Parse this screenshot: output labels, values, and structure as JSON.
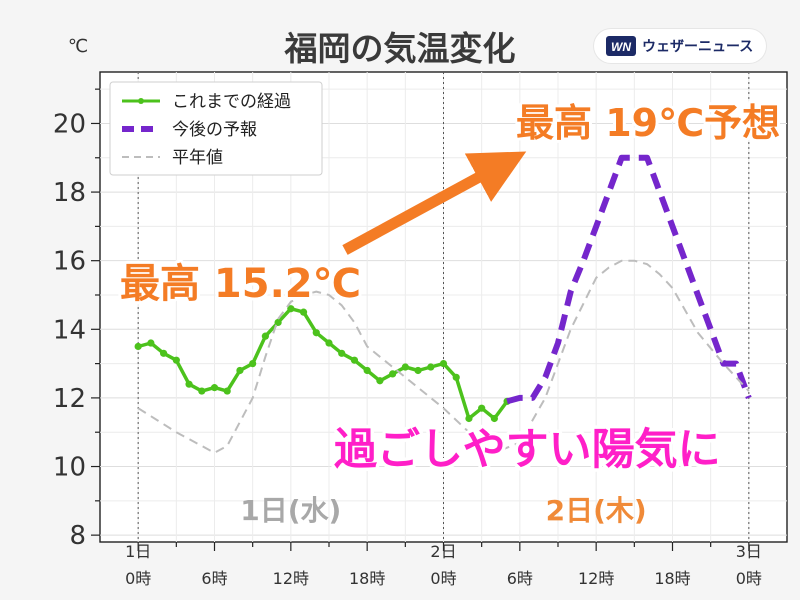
{
  "brand": {
    "name": "ウェザーニュース",
    "mark": "WN"
  },
  "chart_data": {
    "type": "line",
    "title": "福岡の気温変化",
    "ylabel": "℃",
    "ylim": [
      7.8,
      21.5
    ],
    "xlim": [
      -3,
      51
    ],
    "yticks": [
      8,
      10,
      12,
      14,
      16,
      18,
      20
    ],
    "xticks": [
      {
        "x": 0,
        "top": "1日",
        "bottom": "0時"
      },
      {
        "x": 6,
        "top": "",
        "bottom": "6時"
      },
      {
        "x": 12,
        "top": "",
        "bottom": "12時"
      },
      {
        "x": 18,
        "top": "",
        "bottom": "18時"
      },
      {
        "x": 24,
        "top": "2日",
        "bottom": "0時"
      },
      {
        "x": 30,
        "top": "",
        "bottom": "6時"
      },
      {
        "x": 36,
        "top": "",
        "bottom": "12時"
      },
      {
        "x": 42,
        "top": "",
        "bottom": "18時"
      },
      {
        "x": 48,
        "top": "3日",
        "bottom": "0時"
      }
    ],
    "grid": true,
    "legend_position": "top-left",
    "day_dividers": [
      0,
      24,
      48
    ],
    "day_labels": [
      {
        "text": "1日(水)",
        "x": 12,
        "color": "#a8a8a8"
      },
      {
        "text": "2日(木)",
        "x": 36,
        "color": "#f08a38"
      }
    ],
    "series": [
      {
        "name": "これまでの経過",
        "style": "solid-markers",
        "color": "#4cc21c",
        "x": [
          0,
          1,
          2,
          3,
          4,
          5,
          6,
          7,
          8,
          9,
          10,
          11,
          12,
          13,
          14,
          15,
          16,
          17,
          18,
          19,
          20,
          21,
          22,
          23,
          24,
          25,
          26,
          27,
          28,
          29
        ],
        "y": [
          13.5,
          13.6,
          13.3,
          13.1,
          12.4,
          12.2,
          12.3,
          12.2,
          12.8,
          13.0,
          13.8,
          14.2,
          14.6,
          14.5,
          13.9,
          13.6,
          13.3,
          13.1,
          12.8,
          12.5,
          12.7,
          12.9,
          12.8,
          12.9,
          13.0,
          12.6,
          11.4,
          11.7,
          11.4,
          11.9
        ]
      },
      {
        "name": "今後の予報",
        "style": "dashed-bold",
        "color": "#7526cc",
        "x": [
          29,
          30,
          31,
          32,
          33,
          34,
          35,
          36,
          37,
          38,
          39,
          40,
          41,
          42,
          43,
          44,
          45,
          46,
          47,
          48
        ],
        "y": [
          11.9,
          12.0,
          12.0,
          12.6,
          13.6,
          15.1,
          16.0,
          17.0,
          18.0,
          19.0,
          19.0,
          19.0,
          18.0,
          17.0,
          16.0,
          15.0,
          14.0,
          13.0,
          13.0,
          12.0
        ]
      },
      {
        "name": "平年値",
        "style": "dashed-thin",
        "color": "#bdbdbd",
        "x": [
          0,
          3,
          6,
          7,
          9,
          10,
          11,
          12,
          13,
          14,
          15,
          16,
          17,
          18,
          20,
          22,
          24,
          26,
          28,
          30,
          32,
          34,
          36,
          37,
          38,
          39,
          40,
          41,
          42,
          44,
          46,
          48
        ],
        "y": [
          11.7,
          11.0,
          10.4,
          10.6,
          12.0,
          13.2,
          14.3,
          14.8,
          15.0,
          15.1,
          15.0,
          14.7,
          14.2,
          13.5,
          12.9,
          12.3,
          11.7,
          11.0,
          10.4,
          10.7,
          12.0,
          14.0,
          15.5,
          15.8,
          16.0,
          16.0,
          15.9,
          15.6,
          15.2,
          13.9,
          13.0,
          12.2
        ]
      }
    ],
    "annotations": [
      {
        "text": "最高 15.2℃",
        "color": "#f47c25"
      },
      {
        "text": "最高 19℃予想",
        "color": "#f47c25"
      },
      {
        "text": "過ごしやすい陽気に",
        "color": "#ff1fc8"
      }
    ]
  }
}
